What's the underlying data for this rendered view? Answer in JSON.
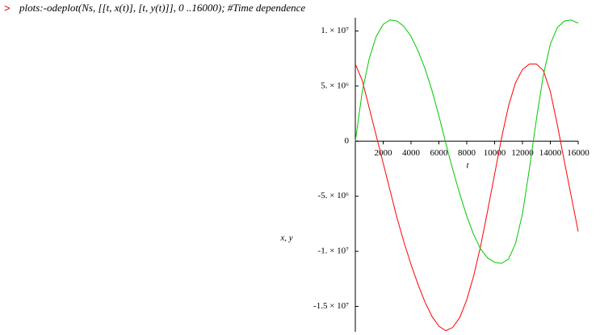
{
  "prompt": {
    "marker": ">",
    "command": "plots:-odeplot(Ns, [[t, x(t)], [t, y(t)]], 0 ..16000); #Time dependence"
  },
  "chart_data": {
    "type": "line",
    "xlabel": "t",
    "ylabel": "x, y",
    "x": [
      0,
      500,
      1000,
      1500,
      2000,
      2500,
      3000,
      3500,
      4000,
      4500,
      5000,
      5500,
      6000,
      6500,
      7000,
      7500,
      8000,
      8500,
      9000,
      9500,
      10000,
      10500,
      11000,
      11500,
      12000,
      12500,
      13000,
      13500,
      14000,
      14500,
      15000,
      15500,
      16000
    ],
    "series": [
      {
        "color": "#ff0000",
        "values": [
          7000000,
          5500000,
          3000000,
          500000,
          -2000000,
          -4500000,
          -7000000,
          -9200000,
          -11200000,
          -13000000,
          -14600000,
          -15900000,
          -16800000,
          -17200000,
          -16900000,
          -16000000,
          -14400000,
          -12200000,
          -9500000,
          -6300000,
          -3000000,
          300000,
          3200000,
          5300000,
          6500000,
          7000000,
          7000000,
          6400000,
          4500000,
          1500000,
          -1800000,
          -5000000,
          -8200000
        ]
      },
      {
        "color": "#00c800",
        "values": [
          0,
          4500000,
          7500000,
          9500000,
          10600000,
          11000000,
          10900000,
          10400000,
          9500000,
          8200000,
          6600000,
          4600000,
          2300000,
          -200000,
          -2600000,
          -4800000,
          -6800000,
          -8500000,
          -9800000,
          -10600000,
          -11000000,
          -11100000,
          -10700000,
          -9300000,
          -6600000,
          -2500000,
          2000000,
          6000000,
          8800000,
          10300000,
          10900000,
          11000000,
          10700000
        ]
      }
    ],
    "xlim": [
      0,
      16000
    ],
    "xticks": [
      2000,
      4000,
      6000,
      8000,
      10000,
      12000,
      14000,
      16000
    ],
    "ylim": [
      -17300000,
      11200000
    ],
    "yticks": [
      {
        "value": 10000000,
        "label": "1. × 10⁷"
      },
      {
        "value": 5000000,
        "label": "5. × 10⁶"
      },
      0,
      {
        "value": -5000000,
        "label": "-5. × 10⁶"
      },
      {
        "value": -10000000,
        "label": "-1. × 10⁷"
      },
      {
        "value": -15000000,
        "label": "-1.5 × 10⁷"
      }
    ]
  }
}
